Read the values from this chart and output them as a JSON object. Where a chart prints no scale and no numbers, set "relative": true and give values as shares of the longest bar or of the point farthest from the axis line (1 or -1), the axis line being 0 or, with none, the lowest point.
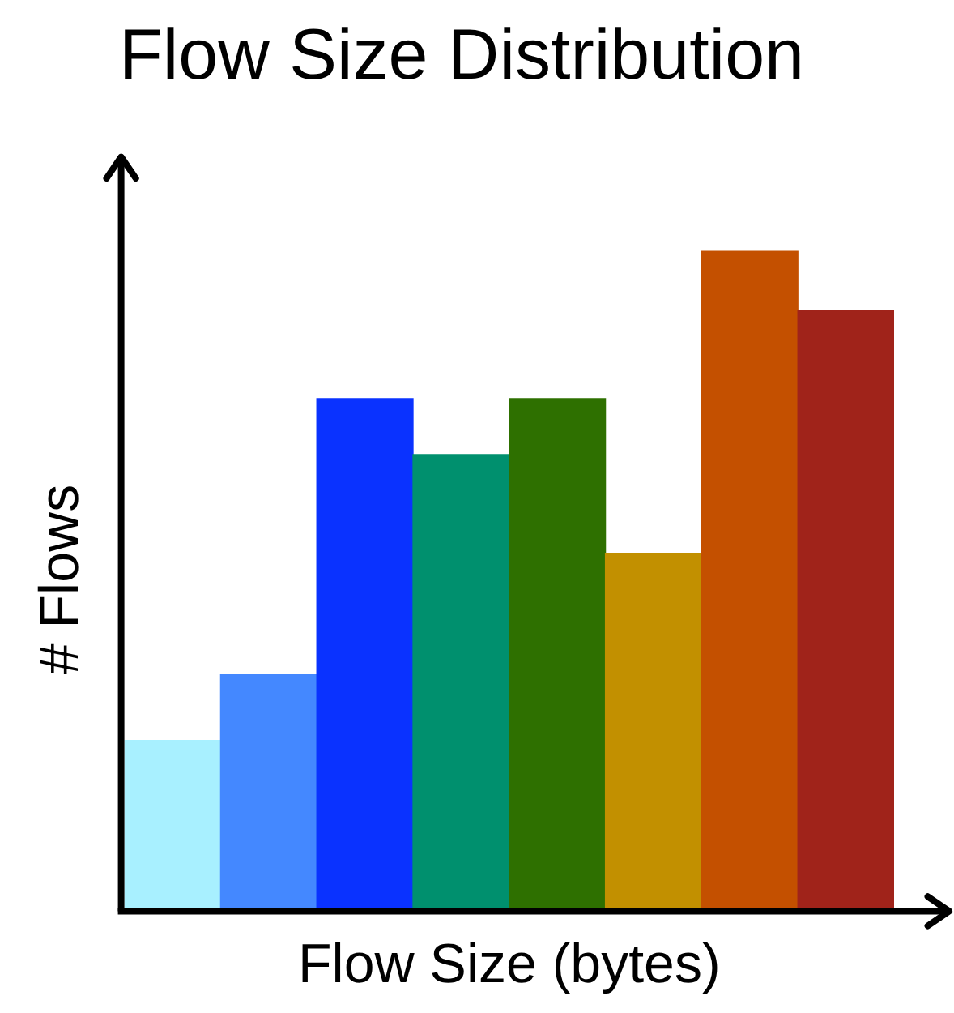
{
  "chart_data": {
    "type": "bar",
    "title": "Flow Size Distribution",
    "xlabel": "Flow Size (bytes)",
    "ylabel": "# Flows",
    "relative": true,
    "grid": false,
    "legend": false,
    "categories": [
      null,
      null,
      null,
      null,
      null,
      null,
      null,
      null
    ],
    "values": [
      0.255,
      0.355,
      0.775,
      0.69,
      0.775,
      0.54,
      1,
      0.91
    ],
    "colors": [
      "#a8f0ff",
      "#4488ff",
      "#0a32ff",
      "#00906e",
      "#2e7000",
      "#c29000",
      "#c45000",
      "#a0231a"
    ]
  }
}
